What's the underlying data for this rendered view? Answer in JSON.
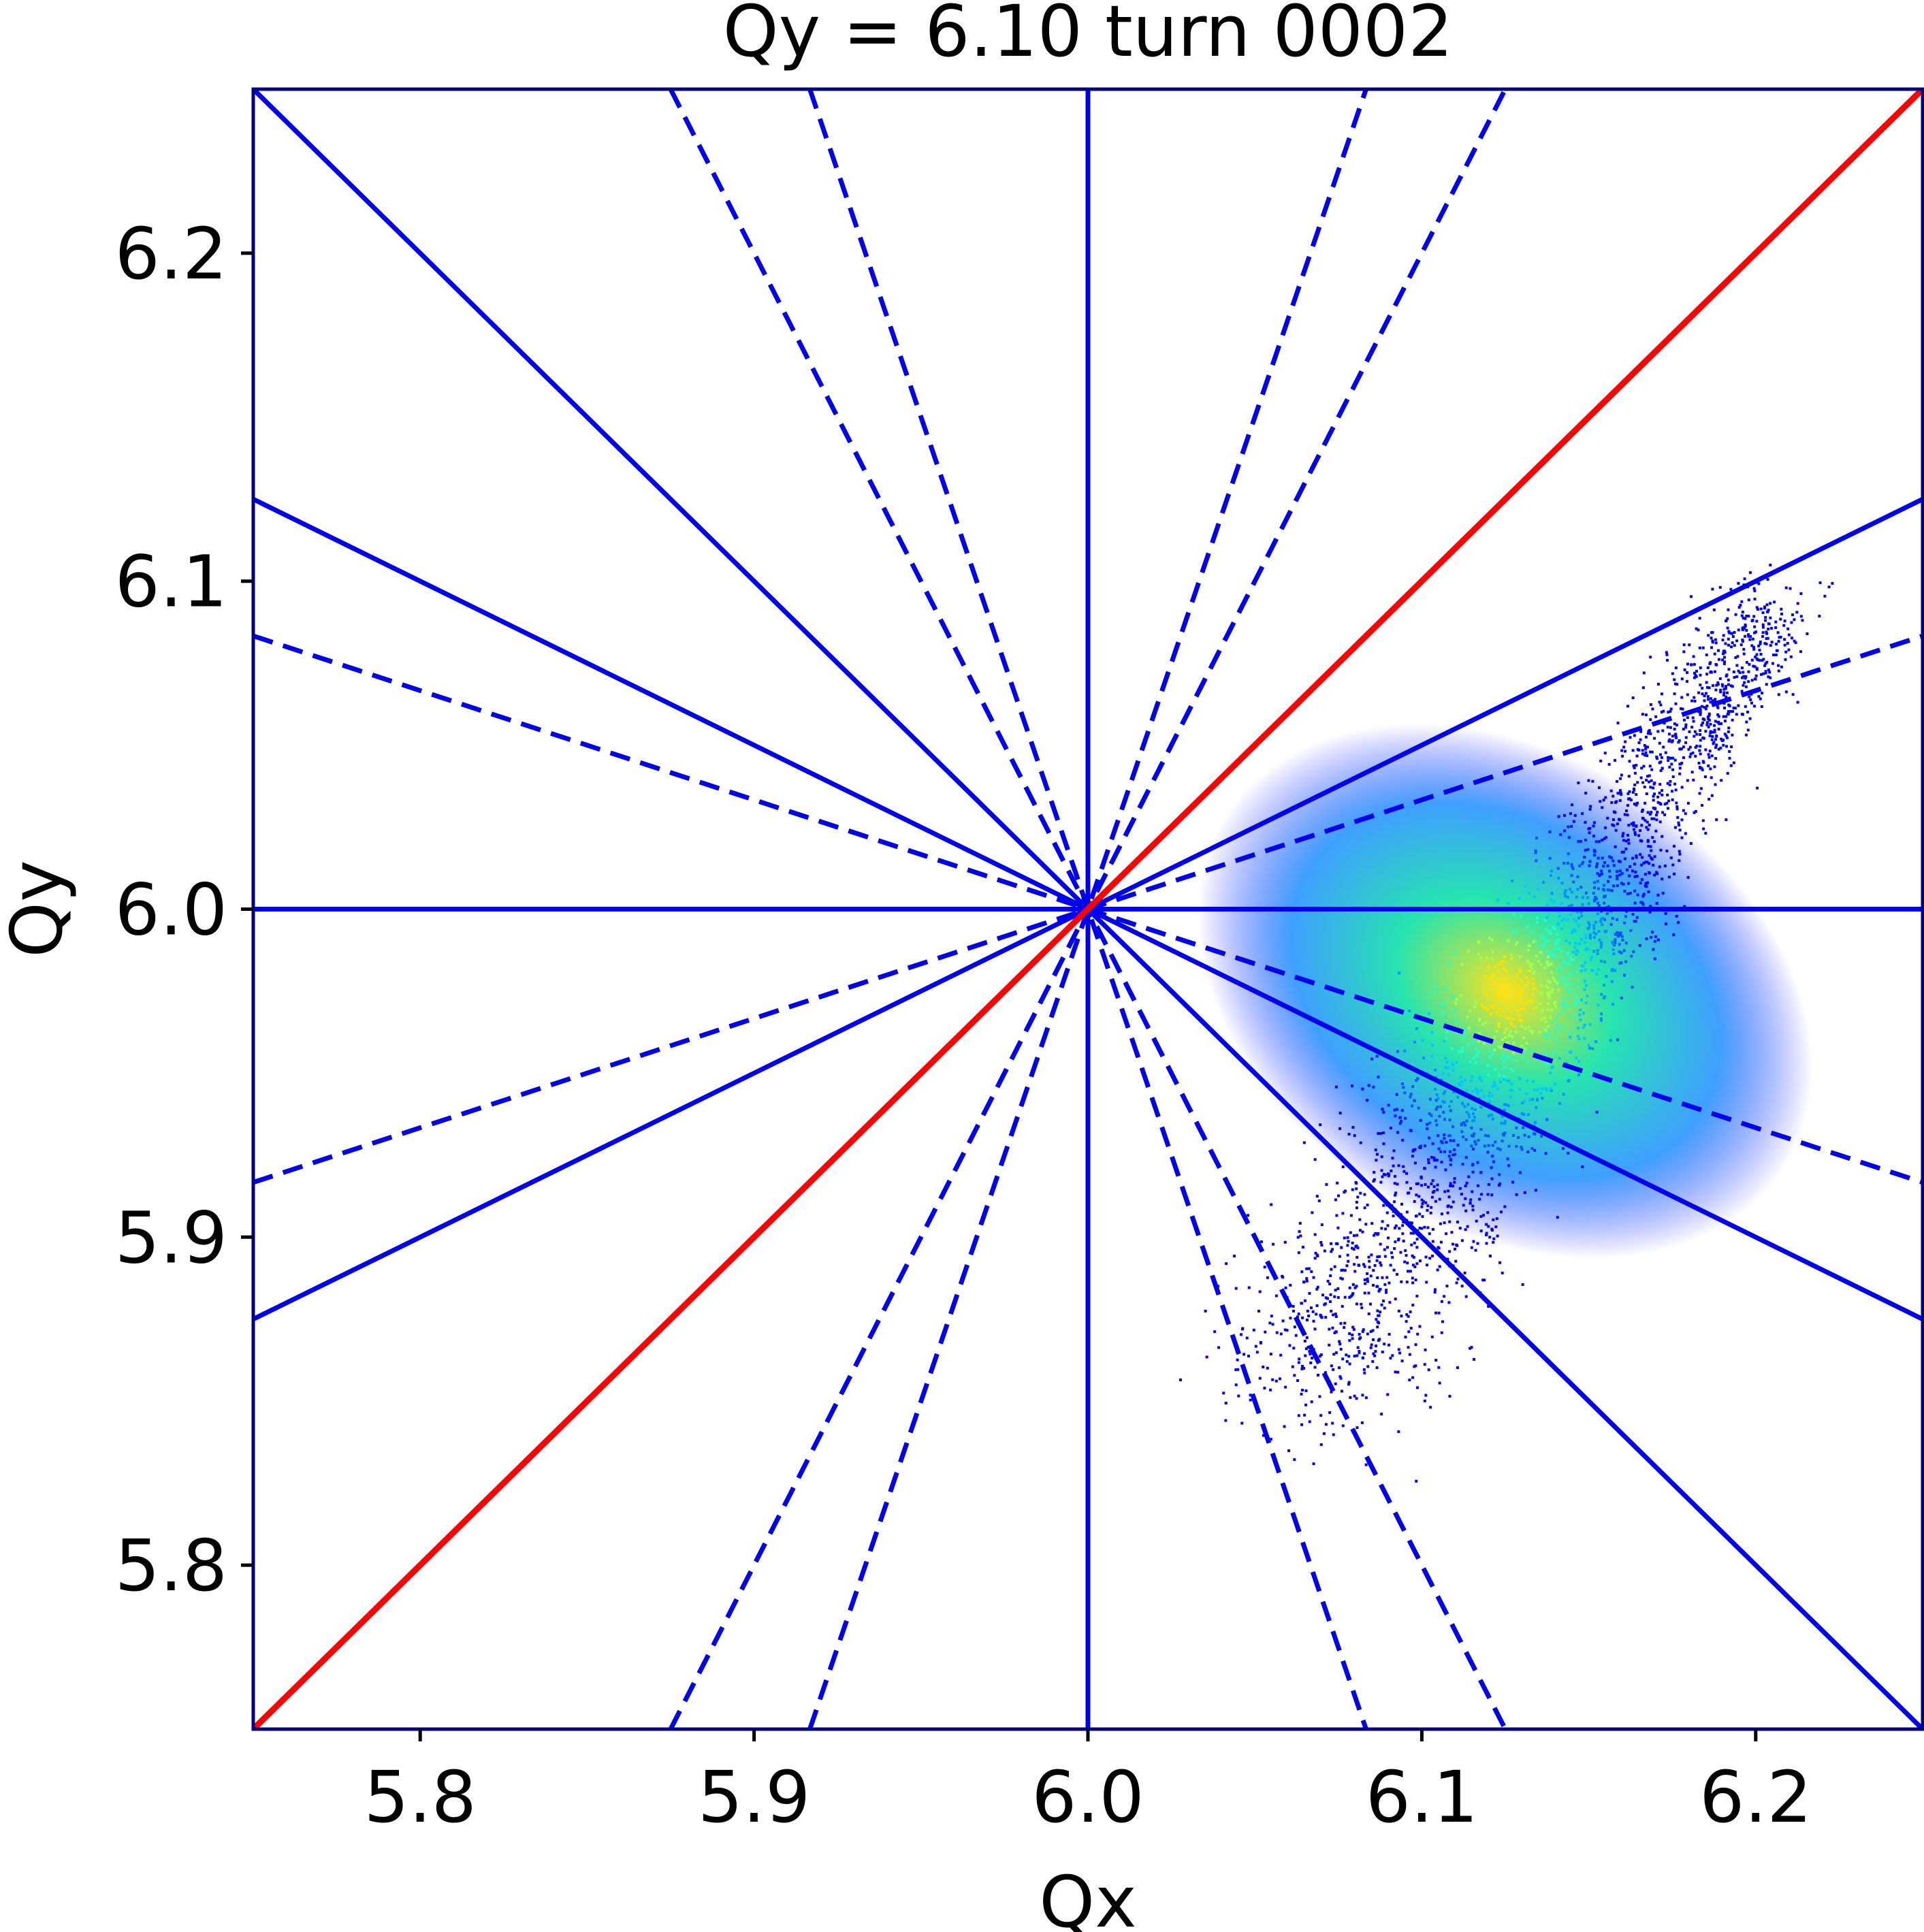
{
  "chart_data": {
    "type": "scatter",
    "title": "Qy = 6.10 turn 0002",
    "xlabel": "Qx",
    "ylabel": "Qy",
    "xlim": [
      5.75,
      6.25
    ],
    "ylim": [
      5.75,
      6.25
    ],
    "xticks": [
      5.8,
      5.9,
      6.0,
      6.1,
      6.2
    ],
    "yticks": [
      5.8,
      5.9,
      6.0,
      6.1,
      6.2
    ],
    "xtick_labels": [
      "5.8",
      "5.9",
      "6.0",
      "6.1",
      "6.2"
    ],
    "ytick_labels": [
      "5.8",
      "5.9",
      "6.0",
      "6.1",
      "6.2"
    ],
    "grid": false,
    "colors": {
      "resonance_line": "#0000ee",
      "diagonal_line": "#ff0000",
      "frame": "#000080",
      "density_low": "#0000ff",
      "density_mid": "#00b4ff",
      "density_high": "#ffd000"
    },
    "resonance_lines": [
      {
        "x": [
          5.75,
          6.25
        ],
        "y": [
          6.0,
          6.0
        ],
        "style": "solid",
        "color": "blue"
      },
      {
        "x": [
          6.0,
          6.0
        ],
        "y": [
          5.75,
          6.25
        ],
        "style": "solid",
        "color": "blue"
      },
      {
        "x": [
          5.75,
          6.25
        ],
        "y": [
          6.25,
          5.75
        ],
        "style": "solid",
        "color": "blue"
      },
      {
        "x": [
          5.75,
          6.25
        ],
        "y": [
          6.125,
          5.875
        ],
        "style": "solid",
        "color": "blue"
      },
      {
        "x": [
          5.75,
          6.25
        ],
        "y": [
          5.875,
          6.125
        ],
        "style": "solid",
        "color": "blue"
      },
      {
        "x": [
          5.75,
          6.25
        ],
        "y": [
          6.0833,
          5.9167
        ],
        "style": "dashed",
        "color": "blue"
      },
      {
        "x": [
          5.75,
          6.25
        ],
        "y": [
          5.9167,
          6.0833
        ],
        "style": "dashed",
        "color": "blue"
      },
      {
        "x": [
          5.875,
          6.125
        ],
        "y": [
          6.25,
          5.75
        ],
        "style": "dashed",
        "color": "blue"
      },
      {
        "x": [
          5.875,
          6.125
        ],
        "y": [
          5.75,
          6.25
        ],
        "style": "dashed",
        "color": "blue"
      },
      {
        "x": [
          5.9167,
          6.0833
        ],
        "y": [
          6.25,
          5.75
        ],
        "style": "dashed",
        "color": "blue"
      },
      {
        "x": [
          5.9167,
          6.0833
        ],
        "y": [
          5.75,
          6.25
        ],
        "style": "dashed",
        "color": "blue"
      },
      {
        "x": [
          5.75,
          6.25
        ],
        "y": [
          5.75,
          6.25
        ],
        "style": "solid",
        "color": "red"
      }
    ],
    "tune_footprint": {
      "description_values": "density of particle tunes",
      "qx_range": [
        6.04,
        6.21
      ],
      "qy_range": [
        5.82,
        6.1
      ],
      "peak": {
        "qx": 6.125,
        "qy": 5.975
      }
    }
  }
}
